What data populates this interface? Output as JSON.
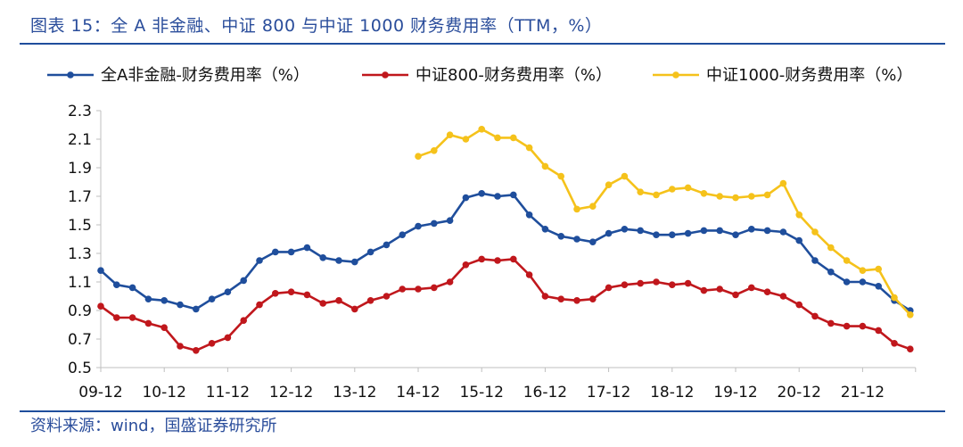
{
  "header": {
    "title": "图表 15：全 A 非金融、中证 800 与中证 1000 财务费用率（TTM，%）"
  },
  "footer": {
    "source": "资料来源：wind，国盛证券研究所"
  },
  "colors": {
    "series1": "#1f4e9c",
    "series2": "#c0171c",
    "series3": "#f5c21b",
    "axis": "#bfbfbf",
    "rule": "#1f4e9c"
  },
  "chart_data": {
    "type": "line",
    "title": "全 A 非金融、中证 800 与中证 1000 财务费用率（TTM，%）",
    "xlabel": "",
    "ylabel": "",
    "ylim": [
      0.5,
      2.3
    ],
    "yticks": [
      "0.5",
      "0.7",
      "0.9",
      "1.1",
      "1.3",
      "1.5",
      "1.7",
      "1.9",
      "2.1",
      "2.3"
    ],
    "x_tick_labels": [
      "09-12",
      "10-12",
      "11-12",
      "12-12",
      "13-12",
      "14-12",
      "15-12",
      "16-12",
      "17-12",
      "18-12",
      "19-12",
      "20-12",
      "21-12"
    ],
    "x_start": "2009-12",
    "x_step": "quarter",
    "grid": false,
    "legend": "top",
    "series": [
      {
        "name": "全A非金融-财务费用率（%）",
        "color": "#1f4e9c",
        "start_index": 0,
        "values": [
          1.18,
          1.08,
          1.06,
          0.98,
          0.97,
          0.94,
          0.91,
          0.98,
          1.03,
          1.11,
          1.25,
          1.31,
          1.31,
          1.34,
          1.27,
          1.25,
          1.24,
          1.31,
          1.36,
          1.43,
          1.49,
          1.51,
          1.53,
          1.69,
          1.72,
          1.7,
          1.71,
          1.57,
          1.47,
          1.42,
          1.4,
          1.38,
          1.44,
          1.47,
          1.46,
          1.43,
          1.43,
          1.44,
          1.46,
          1.46,
          1.43,
          1.47,
          1.46,
          1.45,
          1.39,
          1.25,
          1.17,
          1.1,
          1.1,
          1.07,
          0.97,
          0.9
        ]
      },
      {
        "name": "中证800-财务费用率（%）",
        "color": "#c0171c",
        "start_index": 0,
        "values": [
          0.93,
          0.85,
          0.85,
          0.81,
          0.78,
          0.65,
          0.62,
          0.67,
          0.71,
          0.83,
          0.94,
          1.02,
          1.03,
          1.01,
          0.95,
          0.97,
          0.91,
          0.97,
          1.0,
          1.05,
          1.05,
          1.06,
          1.1,
          1.22,
          1.26,
          1.25,
          1.26,
          1.15,
          1.0,
          0.98,
          0.97,
          0.98,
          1.06,
          1.08,
          1.09,
          1.1,
          1.08,
          1.09,
          1.04,
          1.05,
          1.01,
          1.06,
          1.03,
          1.0,
          0.94,
          0.86,
          0.81,
          0.79,
          0.79,
          0.76,
          0.67,
          0.63
        ]
      },
      {
        "name": "中证1000-财务费用率（%）",
        "color": "#f5c21b",
        "start_index": 20,
        "values": [
          1.98,
          2.02,
          2.13,
          2.1,
          2.17,
          2.11,
          2.11,
          2.04,
          1.91,
          1.84,
          1.61,
          1.63,
          1.78,
          1.84,
          1.73,
          1.71,
          1.75,
          1.76,
          1.72,
          1.7,
          1.69,
          1.7,
          1.71,
          1.79,
          1.57,
          1.45,
          1.34,
          1.25,
          1.18,
          1.19,
          0.99,
          0.87
        ]
      }
    ]
  }
}
